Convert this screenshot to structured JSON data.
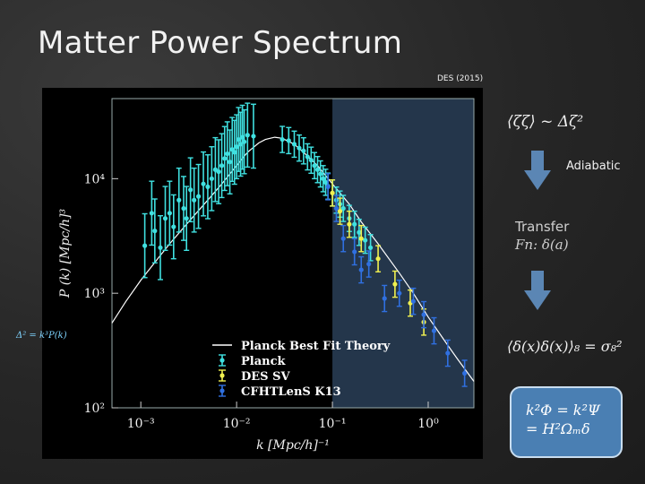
{
  "slide": {
    "title": "Matter Power Spectrum",
    "source_caption": "DES (2015)",
    "side_formula_top": "⟨ζζ⟩ ~ Δζ²",
    "adiabatic_label": "Adiabatic",
    "transfer_label_line1": "Transfer",
    "transfer_label_line2": "Fn: δ(a)",
    "side_formula_bottom": "⟨δ(x)δ(x)⟩₈ = σ₈²",
    "ratio_label": "Δ² = k³P(k)",
    "box_line1": "k²Φ = k²Ψ",
    "box_line2": "= H²Ωₘδ",
    "accent": "#7fd4ff",
    "box_color": "#4a7fb3"
  },
  "chart_data": {
    "type": "scatter",
    "xlabel": "k  [Mpc/h]⁻¹",
    "ylabel": "P (k)   [Mpc/h]³",
    "xscale": "log",
    "yscale": "log",
    "xlim": [
      0.0005,
      3
    ],
    "ylim": [
      100,
      50000
    ],
    "x_ticks": [
      {
        "value": 0.001,
        "label": "10⁻³"
      },
      {
        "value": 0.01,
        "label": "10⁻²"
      },
      {
        "value": 0.1,
        "label": "10⁻¹"
      },
      {
        "value": 1,
        "label": "10⁰"
      }
    ],
    "y_ticks": [
      {
        "value": 100,
        "label": "10²"
      },
      {
        "value": 1000,
        "label": "10³"
      },
      {
        "value": 10000,
        "label": "10⁴"
      }
    ],
    "highlight_region": [
      0.1,
      3
    ],
    "legend_position": "bottom-center",
    "series": [
      {
        "name": "Planck Best Fit Theory",
        "kind": "line",
        "color": "#ffffff",
        "points": [
          [
            0.0005,
            550
          ],
          [
            0.0007,
            850
          ],
          [
            0.001,
            1300
          ],
          [
            0.0015,
            2000
          ],
          [
            0.002,
            2700
          ],
          [
            0.003,
            4000
          ],
          [
            0.005,
            6500
          ],
          [
            0.007,
            9000
          ],
          [
            0.01,
            13000
          ],
          [
            0.013,
            17000
          ],
          [
            0.017,
            20500
          ],
          [
            0.02,
            22000
          ],
          [
            0.025,
            23000
          ],
          [
            0.03,
            22500
          ],
          [
            0.04,
            20000
          ],
          [
            0.05,
            17000
          ],
          [
            0.07,
            13000
          ],
          [
            0.1,
            9000
          ],
          [
            0.15,
            6000
          ],
          [
            0.2,
            4200
          ],
          [
            0.3,
            2700
          ],
          [
            0.5,
            1500
          ],
          [
            0.7,
            1000
          ],
          [
            1,
            620
          ],
          [
            1.5,
            380
          ],
          [
            2,
            270
          ],
          [
            3,
            170
          ]
        ]
      },
      {
        "name": "Planck",
        "kind": "points",
        "color": "#40e0e0",
        "points": [
          [
            0.0011,
            2600
          ],
          [
            0.0013,
            5000
          ],
          [
            0.0014,
            3500
          ],
          [
            0.0016,
            2500
          ],
          [
            0.0018,
            4500
          ],
          [
            0.002,
            5000
          ],
          [
            0.0022,
            3800
          ],
          [
            0.0025,
            6500
          ],
          [
            0.0028,
            5500
          ],
          [
            0.003,
            4500
          ],
          [
            0.0033,
            8000
          ],
          [
            0.0036,
            6500
          ],
          [
            0.004,
            7000
          ],
          [
            0.0045,
            9000
          ],
          [
            0.005,
            8500
          ],
          [
            0.0055,
            10000
          ],
          [
            0.006,
            12000
          ],
          [
            0.0065,
            11500
          ],
          [
            0.007,
            13000
          ],
          [
            0.0075,
            15000
          ],
          [
            0.008,
            16500
          ],
          [
            0.0085,
            14000
          ],
          [
            0.009,
            18000
          ],
          [
            0.0095,
            17000
          ],
          [
            0.01,
            19000
          ],
          [
            0.0105,
            22000
          ],
          [
            0.011,
            20000
          ],
          [
            0.0115,
            23000
          ],
          [
            0.012,
            21000
          ],
          [
            0.013,
            24000
          ],
          [
            0.015,
            23500
          ],
          [
            0.03,
            22000
          ],
          [
            0.035,
            21500
          ],
          [
            0.04,
            20000
          ],
          [
            0.045,
            18500
          ],
          [
            0.05,
            17500
          ],
          [
            0.055,
            15500
          ],
          [
            0.06,
            14500
          ],
          [
            0.065,
            13000
          ],
          [
            0.07,
            12000
          ],
          [
            0.075,
            11000
          ],
          [
            0.08,
            10000
          ],
          [
            0.085,
            9300
          ],
          [
            0.09,
            8600
          ],
          [
            0.1,
            7500
          ],
          [
            0.11,
            6500
          ],
          [
            0.12,
            6000
          ],
          [
            0.13,
            5500
          ],
          [
            0.15,
            4500
          ],
          [
            0.17,
            4000
          ],
          [
            0.19,
            3400
          ],
          [
            0.22,
            2900
          ],
          [
            0.25,
            2500
          ]
        ]
      },
      {
        "name": "DES SV",
        "kind": "points",
        "color": "#f0f050",
        "points": [
          [
            0.1,
            7500
          ],
          [
            0.12,
            5200
          ],
          [
            0.15,
            4000
          ],
          [
            0.2,
            3000
          ],
          [
            0.3,
            2000
          ],
          [
            0.45,
            1200
          ],
          [
            0.65,
            820
          ],
          [
            0.9,
            560
          ]
        ]
      },
      {
        "name": "CFHTLenS K13",
        "kind": "points",
        "color": "#3070e0",
        "points": [
          [
            0.09,
            8500
          ],
          [
            0.11,
            5500
          ],
          [
            0.13,
            3000
          ],
          [
            0.17,
            2300
          ],
          [
            0.2,
            1600
          ],
          [
            0.24,
            1800
          ],
          [
            0.35,
            900
          ],
          [
            0.5,
            1000
          ],
          [
            0.7,
            850
          ],
          [
            0.9,
            650
          ],
          [
            1.15,
            470
          ],
          [
            1.6,
            300
          ],
          [
            2.4,
            200
          ]
        ]
      }
    ]
  }
}
